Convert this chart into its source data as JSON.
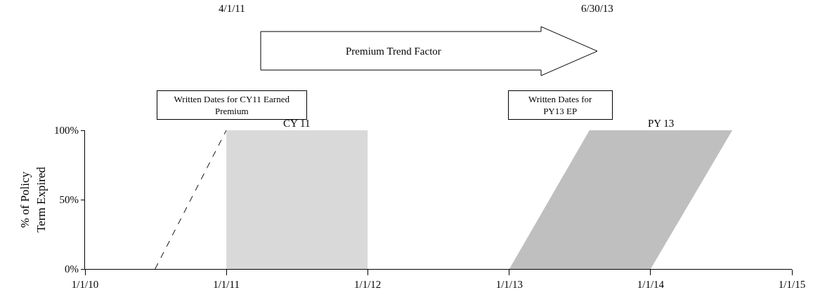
{
  "chart_data": {
    "type": "area",
    "ylabel": "% of Policy\nTerm Expired",
    "xlim": [
      "2010-01-01",
      "2015-01-01"
    ],
    "xticks": [
      {
        "value": "2010-01-01",
        "label": "1/1/10"
      },
      {
        "value": "2011-01-01",
        "label": "1/1/11"
      },
      {
        "value": "2012-01-01",
        "label": "1/1/12"
      },
      {
        "value": "2013-01-01",
        "label": "1/1/13"
      },
      {
        "value": "2014-01-01",
        "label": "1/1/14"
      },
      {
        "value": "2015-01-01",
        "label": "1/1/15"
      }
    ],
    "ylim": [
      0,
      100
    ],
    "yticks": [
      {
        "value": 0,
        "label": "0%"
      },
      {
        "value": 50,
        "label": "50%"
      },
      {
        "value": 100,
        "label": "100%"
      }
    ],
    "grid": false,
    "legend": false,
    "series": [
      {
        "type": "line",
        "color": "#000000",
        "line_style": "dashed",
        "x": [
          "2010-07-01",
          "2011-01-01"
        ],
        "values": [
          0,
          100
        ]
      },
      {
        "name": "CY 11",
        "color": "#d9d9d9",
        "x": [
          "2011-01-01",
          "2011-01-01",
          "2012-01-01",
          "2012-01-01"
        ],
        "values": [
          0,
          100,
          100,
          0
        ]
      },
      {
        "name": "PY 13",
        "color": "#bfbfbf",
        "x": [
          "2013-01-01",
          "2013-07-27",
          "2014-07-31",
          "2014-01-01"
        ],
        "values": [
          0,
          100,
          100,
          0
        ]
      }
    ],
    "annotations": [
      "4/1/11",
      "6/30/13",
      "Premium Trend Factor",
      "Written Dates for CY11 Earned Premium",
      "Written Dates for PY13 EP"
    ]
  }
}
